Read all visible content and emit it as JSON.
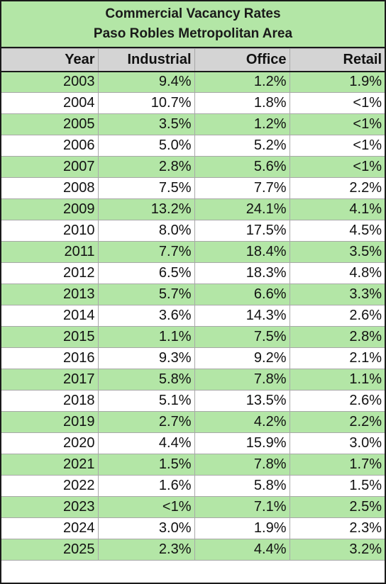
{
  "title": {
    "line1": "Commercial Vacancy Rates",
    "line2": "Paso Robles Metropolitan Area"
  },
  "columns": [
    "Year",
    "Industrial",
    "Office",
    "Retail"
  ],
  "rows": [
    [
      "2003",
      "9.4%",
      "1.2%",
      "1.9%"
    ],
    [
      "2004",
      "10.7%",
      "1.8%",
      "<1%"
    ],
    [
      "2005",
      "3.5%",
      "1.2%",
      "<1%"
    ],
    [
      "2006",
      "5.0%",
      "5.2%",
      "<1%"
    ],
    [
      "2007",
      "2.8%",
      "5.6%",
      "<1%"
    ],
    [
      "2008",
      "7.5%",
      "7.7%",
      "2.2%"
    ],
    [
      "2009",
      "13.2%",
      "24.1%",
      "4.1%"
    ],
    [
      "2010",
      "8.0%",
      "17.5%",
      "4.5%"
    ],
    [
      "2011",
      "7.7%",
      "18.4%",
      "3.5%"
    ],
    [
      "2012",
      "6.5%",
      "18.3%",
      "4.8%"
    ],
    [
      "2013",
      "5.7%",
      "6.6%",
      "3.3%"
    ],
    [
      "2014",
      "3.6%",
      "14.3%",
      "2.6%"
    ],
    [
      "2015",
      "1.1%",
      "7.5%",
      "2.8%"
    ],
    [
      "2016",
      "9.3%",
      "9.2%",
      "2.1%"
    ],
    [
      "2017",
      "5.8%",
      "7.8%",
      "1.1%"
    ],
    [
      "2018",
      "5.1%",
      "13.5%",
      "2.6%"
    ],
    [
      "2019",
      "2.7%",
      "4.2%",
      "2.2%"
    ],
    [
      "2020",
      "4.4%",
      "15.9%",
      "3.0%"
    ],
    [
      "2021",
      "1.5%",
      "7.8%",
      "1.7%"
    ],
    [
      "2022",
      "1.6%",
      "5.8%",
      "1.5%"
    ],
    [
      "2023",
      "<1%",
      "7.1%",
      "2.5%"
    ],
    [
      "2024",
      "3.0%",
      "1.9%",
      "2.3%"
    ],
    [
      "2025",
      "2.3%",
      "4.4%",
      "3.2%"
    ]
  ],
  "colors": {
    "band_green": "#b3e6a6",
    "header_gray": "#d4d4d4",
    "band_white": "#ffffff"
  }
}
